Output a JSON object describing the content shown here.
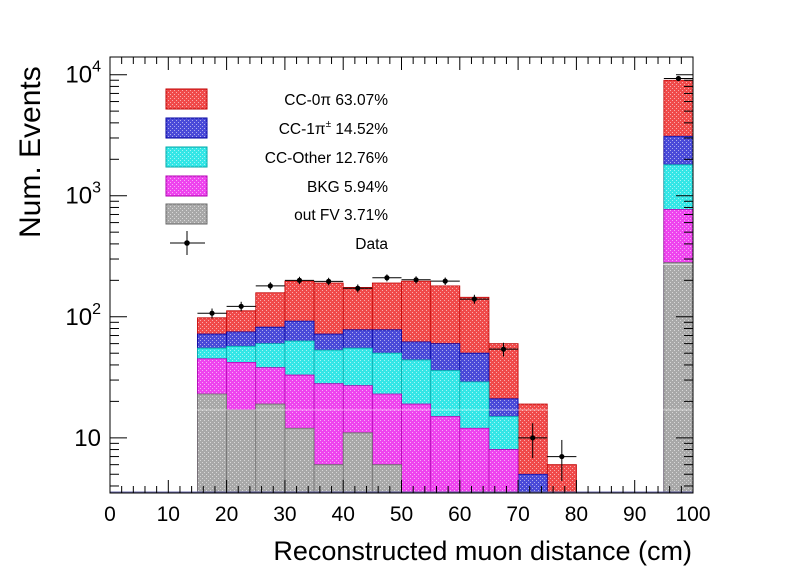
{
  "chart_data": {
    "type": "bar",
    "stacked": true,
    "title": "",
    "xlabel": "Reconstructed muon distance (cm)",
    "ylabel": "Num. Events",
    "xlim": [
      0,
      100
    ],
    "ylim": [
      3.5,
      14000
    ],
    "yscale": "log",
    "bin_width": 5,
    "x_ticks": [
      "0",
      "10",
      "20",
      "30",
      "40",
      "50",
      "60",
      "70",
      "80",
      "90",
      "100"
    ],
    "y_ticks": [
      {
        "value": 10,
        "base": "10",
        "exp": ""
      },
      {
        "value": 100,
        "base": "10",
        "exp": "2"
      },
      {
        "value": 1000,
        "base": "10",
        "exp": "3"
      },
      {
        "value": 10000,
        "base": "10",
        "exp": "4"
      }
    ],
    "bin_lows": [
      15,
      20,
      25,
      30,
      35,
      40,
      45,
      50,
      55,
      60,
      65,
      70,
      75,
      95
    ],
    "series_order_bottom_to_top": [
      "out FV",
      "BKG",
      "CC-Other",
      "CC-1pi",
      "CC-0pi"
    ],
    "series": [
      {
        "key": "CC-0pi",
        "name": "CC-0π",
        "pct": "63.07%",
        "color": "#f04a4a",
        "cumulative_top": [
          98,
          112,
          158,
          197,
          190,
          175,
          190,
          197,
          180,
          145,
          60,
          19,
          6,
          9000
        ]
      },
      {
        "key": "CC-1pi",
        "name": "CC-1π±",
        "pct": "14.52%",
        "color": "#4a4ad8",
        "cumulative_top": [
          72,
          75,
          82,
          92,
          72,
          78,
          78,
          62,
          60,
          50,
          21,
          5,
          0,
          3100
        ]
      },
      {
        "key": "CC-Other",
        "name": "CC-Other",
        "pct": "12.76%",
        "color": "#33e6e6",
        "cumulative_top": [
          55,
          57,
          60,
          63,
          53,
          55,
          50,
          44,
          36,
          29,
          15,
          0,
          0,
          1800
        ]
      },
      {
        "key": "BKG",
        "name": "BKG",
        "pct": "5.94%",
        "color": "#ee44ee",
        "cumulative_top": [
          45,
          42,
          38,
          33,
          28,
          27,
          23,
          19,
          15,
          12,
          8,
          0,
          0,
          770
        ]
      },
      {
        "key": "outFV",
        "name": "out FV",
        "pct": "3.71%",
        "color": "#a8a8a8",
        "cumulative_top": [
          23,
          17,
          19,
          12,
          6,
          11,
          6,
          0,
          0,
          0,
          0,
          0,
          0,
          280
        ]
      }
    ],
    "data_points": [
      {
        "x": 17.5,
        "y": 107,
        "err": 10
      },
      {
        "x": 22.5,
        "y": 122,
        "err": 11
      },
      {
        "x": 27.5,
        "y": 180,
        "err": 13
      },
      {
        "x": 32.5,
        "y": 200,
        "err": 14
      },
      {
        "x": 37.5,
        "y": 196,
        "err": 14
      },
      {
        "x": 42.5,
        "y": 172,
        "err": 13
      },
      {
        "x": 47.5,
        "y": 210,
        "err": 14
      },
      {
        "x": 52.5,
        "y": 202,
        "err": 14
      },
      {
        "x": 57.5,
        "y": 197,
        "err": 14
      },
      {
        "x": 62.5,
        "y": 140,
        "err": 12
      },
      {
        "x": 67.5,
        "y": 54,
        "err": 7
      },
      {
        "x": 72.5,
        "y": 10,
        "err": 3.2
      },
      {
        "x": 77.5,
        "y": 7,
        "err": 2.6
      },
      {
        "x": 97.5,
        "y": 9300,
        "err": 96
      }
    ],
    "legend": {
      "placement": "top-left",
      "entries": [
        {
          "key": "CC-0pi",
          "label": "CC-0π 63.07%",
          "color": "#f04a4a",
          "kind": "fill"
        },
        {
          "key": "CC-1pi",
          "label_main": "CC-1π",
          "label_sup": "±",
          "label_tail": " 14.52%",
          "color": "#4a4ad8",
          "kind": "fill"
        },
        {
          "key": "CC-Other",
          "label": "CC-Other 12.76%",
          "color": "#33e6e6",
          "kind": "fill"
        },
        {
          "key": "BKG",
          "label": "BKG 5.94%",
          "color": "#ee44ee",
          "kind": "fill"
        },
        {
          "key": "outFV",
          "label": "out FV 3.71%",
          "color": "#a8a8a8",
          "kind": "fill"
        },
        {
          "key": "Data",
          "label": "Data",
          "color": "#000000",
          "kind": "marker"
        }
      ]
    }
  }
}
